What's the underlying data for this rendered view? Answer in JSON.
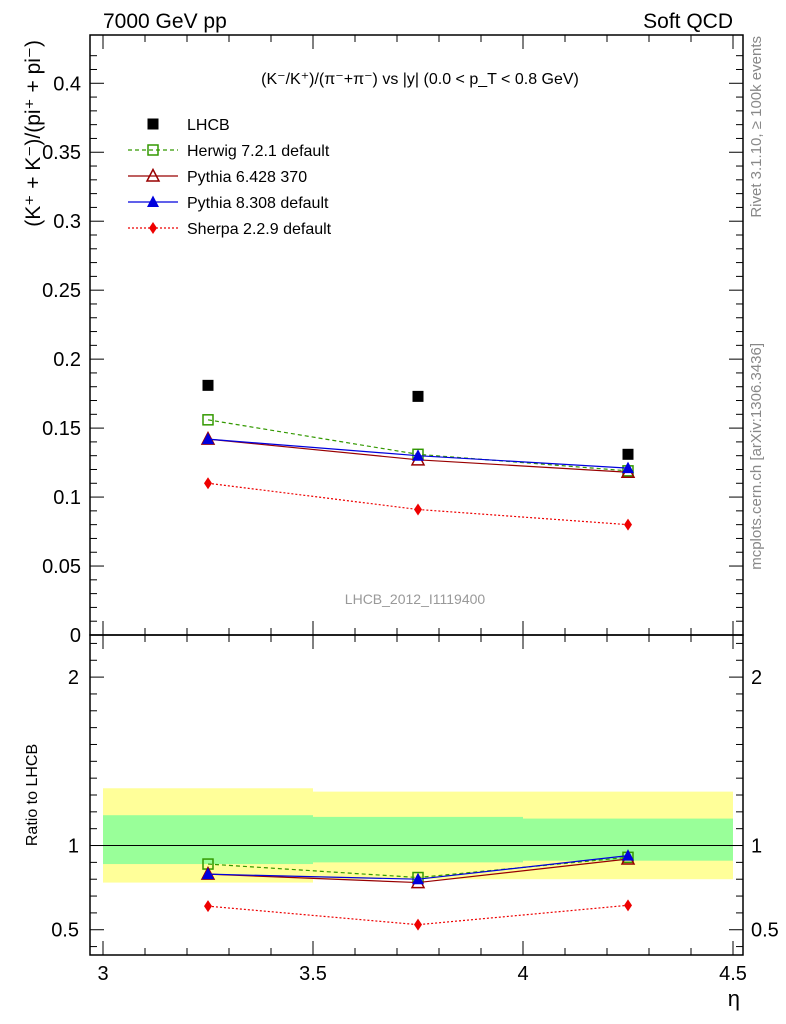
{
  "header": {
    "left": "7000 GeV pp",
    "right": "Soft QCD"
  },
  "side_text": {
    "top": "Rivet 3.1.10, ≥ 100k events",
    "bottom": "mcplots.cern.ch [arXiv:1306.3436]"
  },
  "watermark": "LHCB_2012_I1119400",
  "colors": {
    "lhcb": "#000000",
    "herwig": "#339900",
    "pythia6": "#990000",
    "pythia8": "#0000dd",
    "sherpa": "#ee0000",
    "band_outer": "#ffff99",
    "band_inner": "#99ff99"
  },
  "chart_data": [
    {
      "type": "scatter",
      "title": "(K⁻/K⁺)/(π⁻+π⁻) vs |y| (0.0 < p_T < 0.8 GeV)",
      "ylabel": "(K⁺ + K⁻)/(pi⁺ + pi⁻)",
      "xlim": [
        3.0,
        4.5
      ],
      "ylim": [
        0,
        0.435
      ],
      "yticks": [
        "0",
        "0.05",
        "0.1",
        "0.15",
        "0.2",
        "0.25",
        "0.3",
        "0.35",
        "0.4"
      ],
      "legend_position": "top-left",
      "x": [
        3.25,
        3.75,
        4.25
      ],
      "series": [
        {
          "key": "lhcb",
          "name": "LHCB",
          "values": [
            0.181,
            0.173,
            0.131
          ]
        },
        {
          "key": "herwig",
          "name": "Herwig 7.2.1 default",
          "values": [
            0.156,
            0.131,
            0.119
          ]
        },
        {
          "key": "pythia6",
          "name": "Pythia 6.428 370",
          "values": [
            0.142,
            0.127,
            0.118
          ]
        },
        {
          "key": "pythia8",
          "name": "Pythia 8.308 default",
          "values": [
            0.142,
            0.13,
            0.121
          ]
        },
        {
          "key": "sherpa",
          "name": "Sherpa 2.2.9 default",
          "values": [
            0.11,
            0.091,
            0.08
          ]
        }
      ]
    },
    {
      "type": "scatter",
      "ylabel": "Ratio to LHCB",
      "xlabel": "η",
      "xlim": [
        3.0,
        4.5
      ],
      "ylim": [
        0.35,
        2.25
      ],
      "xticks": [
        "3",
        "3.5",
        "4",
        "4.5"
      ],
      "yticks": [
        "0.5",
        "1",
        "2"
      ],
      "x": [
        3.25,
        3.75,
        4.25
      ],
      "bands": [
        {
          "x0": 3.0,
          "x1": 3.5,
          "outer": [
            0.78,
            1.34
          ],
          "inner": [
            0.89,
            1.18
          ]
        },
        {
          "x0": 3.5,
          "x1": 4.0,
          "outer": [
            0.8,
            1.32
          ],
          "inner": [
            0.9,
            1.17
          ]
        },
        {
          "x0": 4.0,
          "x1": 4.5,
          "outer": [
            0.8,
            1.32
          ],
          "inner": [
            0.91,
            1.16
          ]
        }
      ],
      "series": [
        {
          "key": "herwig",
          "values": [
            0.89,
            0.81,
            0.93
          ]
        },
        {
          "key": "pythia6",
          "values": [
            0.83,
            0.78,
            0.92
          ]
        },
        {
          "key": "pythia8",
          "values": [
            0.83,
            0.8,
            0.94
          ]
        },
        {
          "key": "sherpa",
          "values": [
            0.64,
            0.53,
            0.645
          ]
        }
      ]
    }
  ]
}
